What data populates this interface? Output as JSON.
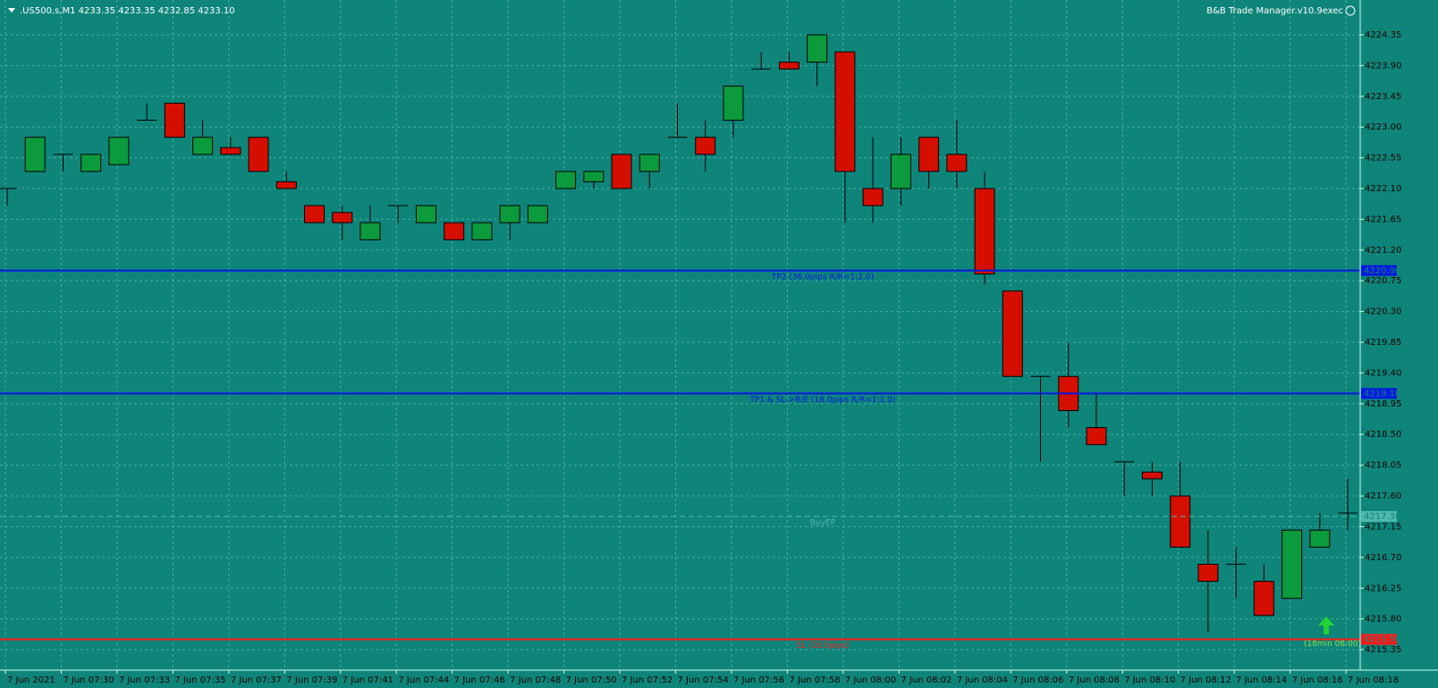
{
  "chart_data": {
    "type": "candlestick",
    "title": ".US500.s,M1  4233.35 4233.35 4232.85 4233.10",
    "subtitle": "B&B Trade Manager.v10.9exec",
    "categories": [
      "7 Jun 2021",
      null,
      "7 Jun 07:30",
      null,
      "7 Jun 07:33",
      null,
      "7 Jun 07:35",
      null,
      "7 Jun 07:37",
      null,
      "7 Jun 07:39",
      null,
      "7 Jun 07:41",
      null,
      "7 Jun 07:44",
      null,
      "7 Jun 07:46",
      null,
      "7 Jun 07:48",
      null,
      "7 Jun 07:50",
      null,
      "7 Jun 07:52",
      null,
      "7 Jun 07:54",
      null,
      "7 Jun 07:56",
      null,
      "7 Jun 07:58",
      null,
      "7 Jun 08:00",
      null,
      "7 Jun 08:02",
      null,
      "7 Jun 08:04",
      null,
      "7 Jun 08:06",
      null,
      "7 Jun 08:08",
      null,
      "7 Jun 08:10",
      null,
      "7 Jun 08:12",
      null,
      "7 Jun 08:14",
      null,
      "7 Jun 08:16",
      null,
      "7 Jun 08:18"
    ],
    "open": [
      4222.1,
      4222.35,
      4222.6,
      4222.35,
      4222.45,
      4223.1,
      4223.35,
      4222.6,
      4222.7,
      4222.85,
      4222.2,
      4221.85,
      4221.75,
      4221.35,
      4221.85,
      4221.6,
      4221.6,
      4221.35,
      4221.6,
      4221.6,
      4222.1,
      4222.2,
      4222.6,
      4222.35,
      4222.85,
      4222.85,
      4223.1,
      4223.85,
      4223.95,
      4223.95,
      4224.1,
      4222.1,
      4222.1,
      4222.85,
      4222.6,
      4222.1,
      4220.6,
      4219.35,
      4219.35,
      4218.6,
      4218.1,
      4217.95,
      4217.6,
      4216.6,
      4216.6,
      4216.35,
      4216.1,
      4216.85,
      4217.35
    ],
    "high": [
      4222.1,
      4222.85,
      4222.6,
      4222.6,
      4222.85,
      4223.35,
      4223.35,
      4223.1,
      4222.85,
      4222.85,
      4222.35,
      4221.85,
      4221.85,
      4221.85,
      4221.85,
      4221.85,
      4221.6,
      4221.6,
      4221.85,
      4221.85,
      4222.35,
      4222.35,
      4222.6,
      4222.6,
      4223.35,
      4223.1,
      4223.6,
      4224.1,
      4224.1,
      4224.35,
      4224.1,
      4222.85,
      4222.85,
      4222.85,
      4223.1,
      4222.35,
      4220.6,
      4219.35,
      4219.85,
      4219.1,
      4218.1,
      4218.1,
      4218.1,
      4217.1,
      4216.85,
      4216.6,
      4217.1,
      4217.35,
      4217.85
    ],
    "low": [
      4221.85,
      4222.35,
      4222.35,
      4222.35,
      4222.45,
      4223.1,
      4222.85,
      4222.6,
      4222.6,
      4222.35,
      4222.1,
      4221.6,
      4221.35,
      4221.35,
      4221.6,
      4221.6,
      4221.35,
      4221.35,
      4221.35,
      4221.6,
      4222.1,
      4222.1,
      4222.1,
      4222.1,
      4222.85,
      4222.35,
      4222.85,
      4223.85,
      4223.85,
      4223.6,
      4221.6,
      4221.6,
      4221.85,
      4222.1,
      4222.1,
      4220.7,
      4219.35,
      4218.1,
      4218.6,
      4218.35,
      4217.6,
      4217.6,
      4216.85,
      4215.6,
      4216.1,
      4215.85,
      4216.1,
      4216.85,
      4217.1
    ],
    "close": [
      4222.1,
      4222.85,
      4222.6,
      4222.6,
      4222.85,
      4223.1,
      4222.85,
      4222.85,
      4222.6,
      4222.35,
      4222.1,
      4221.6,
      4221.6,
      4221.6,
      4221.85,
      4221.85,
      4221.35,
      4221.6,
      4221.85,
      4221.85,
      4222.35,
      4222.35,
      4222.1,
      4222.6,
      4222.85,
      4222.6,
      4223.6,
      4223.85,
      4223.85,
      4224.35,
      4222.35,
      4221.85,
      4222.6,
      4222.35,
      4222.35,
      4220.85,
      4219.35,
      4219.35,
      4218.85,
      4218.35,
      4218.1,
      4217.85,
      4216.85,
      4216.35,
      4216.6,
      4215.85,
      4217.1,
      4217.1,
      4217.35
    ],
    "up_color": "#0b9a3c",
    "down_color": "#d40f00",
    "ylim": [
      4215.05,
      4224.86
    ],
    "yticks": [
      4224.35,
      {
        "value": 4223.9,
        "label": "4223.90"
      },
      4223.45,
      {
        "value": 4223.0,
        "label": "4223.00"
      },
      4222.55,
      {
        "value": 4222.1,
        "label": "4222.10"
      },
      4221.65,
      {
        "value": 4221.2,
        "label": "4221.20"
      },
      4220.75,
      {
        "value": 4220.3,
        "label": "4220.30"
      },
      4219.85,
      {
        "value": 4219.4,
        "label": "4219.40"
      },
      4218.95,
      {
        "value": 4218.5,
        "label": "4218.50"
      },
      4218.05,
      {
        "value": 4217.6,
        "label": "4217.60"
      },
      4217.15,
      {
        "value": 4216.7,
        "label": "4216.70"
      },
      4216.25,
      {
        "value": 4215.8,
        "label": "4215.80"
      },
      4215.35
    ],
    "grid": true,
    "levels": [
      {
        "label": "TP2 (36.0pips R/R=1:2.0)",
        "price": 4220.9,
        "price_label": "4220.90",
        "color": "#0018e0",
        "style": "solid"
      },
      {
        "label": "TP1 & SL->B/E (18.0pips R/R=1:1.0)",
        "price": 4219.1,
        "price_label": "4219.10",
        "color": "#0018e0",
        "style": "solid"
      },
      {
        "label": "BuyEP",
        "price": 4217.3,
        "price_label": "4217.30",
        "color": "#4fb8ad",
        "style": "dashed"
      },
      {
        "label": "SL (18.0pips)",
        "price": 4215.5,
        "price_label": "4215.50",
        "color": "#ff1a1a",
        "style": "solid"
      }
    ],
    "annotation": "(18min 08:00)"
  }
}
